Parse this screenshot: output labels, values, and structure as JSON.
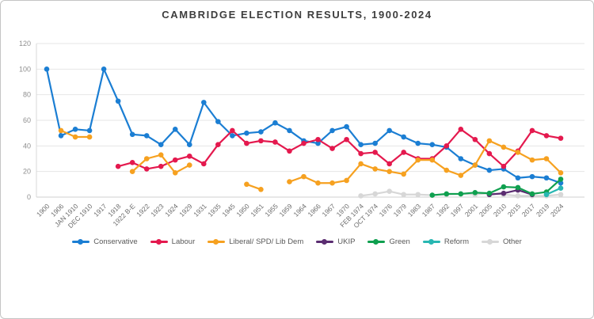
{
  "chart_data": {
    "type": "line",
    "title": "CAMBRIDGE ELECTION RESULTS, 1900-2024",
    "ylim": [
      0,
      120
    ],
    "yticks": [
      0,
      20,
      40,
      60,
      80,
      100,
      120
    ],
    "grid": true,
    "legend_position": "bottom",
    "categories": [
      "1900",
      "1906",
      "JAN 1910",
      "DEC 1910",
      "1917",
      "1918",
      "1922 B-E",
      "1922",
      "1923",
      "1924",
      "1929",
      "1931",
      "1935",
      "1945",
      "1950",
      "1951",
      "1955",
      "1959",
      "1964",
      "1966",
      "1967",
      "1970",
      "FEB 1974",
      "OCT 1974",
      "1976",
      "1979",
      "1983",
      "1987",
      "1992",
      "1997",
      "2001",
      "2005",
      "2010",
      "2015",
      "2017",
      "2019",
      "2024"
    ],
    "series": [
      {
        "name": "Conservative",
        "color": "#1b7ed3",
        "values": [
          100,
          48,
          53,
          52,
          100,
          75,
          49,
          48,
          41,
          53,
          41,
          74,
          59,
          48,
          50,
          51,
          58,
          52,
          44,
          42,
          52,
          55,
          41,
          42,
          52,
          47,
          42,
          41,
          39,
          30,
          25,
          21,
          22,
          15,
          16,
          15,
          11
        ]
      },
      {
        "name": "Labour",
        "color": "#e4194e",
        "values": [
          null,
          null,
          null,
          null,
          null,
          24,
          27,
          22,
          24,
          29,
          32,
          26,
          41,
          52,
          42,
          44,
          43,
          36,
          42,
          45,
          38,
          45,
          34,
          35,
          26,
          35,
          30,
          30,
          40,
          53,
          45,
          34,
          24,
          36,
          52,
          48,
          46
        ]
      },
      {
        "name": "Liberal/ SPD/ Lib Dem",
        "color": "#f6a120",
        "values": [
          null,
          52,
          47,
          47,
          null,
          null,
          20,
          30,
          33,
          19,
          25,
          null,
          null,
          null,
          10,
          6,
          null,
          12,
          16,
          11,
          11,
          13,
          26,
          22,
          20,
          18,
          29,
          29,
          21,
          17,
          25,
          44,
          39,
          35,
          29,
          30,
          19
        ]
      },
      {
        "name": "UKIP",
        "color": "#5b2d71",
        "values": [
          null,
          null,
          null,
          null,
          null,
          null,
          null,
          null,
          null,
          null,
          null,
          null,
          null,
          null,
          null,
          null,
          null,
          null,
          null,
          null,
          null,
          null,
          null,
          null,
          null,
          null,
          null,
          null,
          null,
          null,
          null,
          2,
          3,
          5.5,
          2,
          null,
          null
        ]
      },
      {
        "name": "Green",
        "color": "#0fa04f",
        "values": [
          null,
          null,
          null,
          null,
          null,
          null,
          null,
          null,
          null,
          null,
          null,
          null,
          null,
          null,
          null,
          null,
          null,
          null,
          null,
          null,
          null,
          null,
          null,
          null,
          null,
          null,
          null,
          1.5,
          2.5,
          2.5,
          3.5,
          3,
          8,
          7.5,
          2.5,
          4,
          14
        ]
      },
      {
        "name": "Reform",
        "color": "#28b7b2",
        "values": [
          null,
          null,
          null,
          null,
          null,
          null,
          null,
          null,
          null,
          null,
          null,
          null,
          null,
          null,
          null,
          null,
          null,
          null,
          null,
          null,
          null,
          null,
          null,
          null,
          null,
          null,
          null,
          null,
          null,
          null,
          null,
          null,
          null,
          null,
          null,
          2,
          7
        ]
      },
      {
        "name": "Other",
        "color": "#d7d7d7",
        "values": [
          null,
          null,
          null,
          null,
          null,
          null,
          null,
          null,
          null,
          null,
          null,
          null,
          null,
          null,
          null,
          null,
          null,
          null,
          null,
          null,
          null,
          null,
          1,
          2.5,
          4.5,
          2,
          2,
          1.5,
          2,
          2.5,
          2,
          3,
          2,
          1,
          1,
          1,
          2
        ]
      }
    ]
  }
}
